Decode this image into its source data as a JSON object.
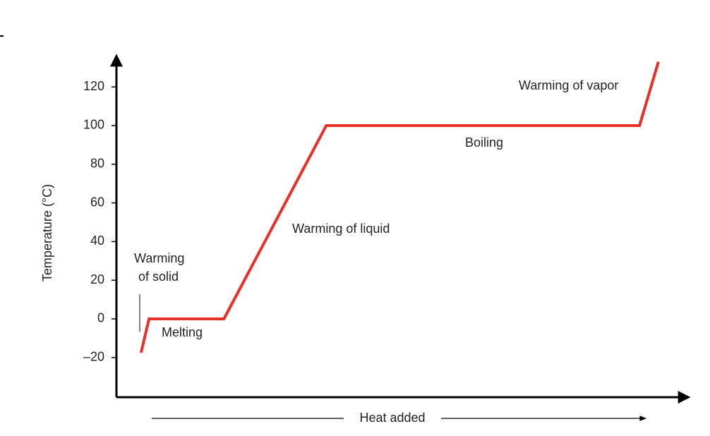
{
  "chart_data": {
    "type": "line",
    "y_label": "Temperature (°C)",
    "x_label": "Heat added",
    "x": [
      4.3,
      5.7,
      18.8,
      36.7,
      91.5,
      94.8
    ],
    "series": [
      {
        "color": "#e8302a",
        "values": [
          -17.5,
          0,
          0,
          100,
          100,
          133
        ]
      }
    ],
    "xlim": [
      0,
      100
    ],
    "ylim": [
      -40,
      137
    ],
    "yticks": [
      {
        "value": -20,
        "label": "–20"
      },
      0,
      20,
      40,
      60,
      80,
      100,
      120
    ],
    "annotations": {
      "warming_of_solid": [
        "Warming",
        "of solid"
      ],
      "melting": "Melting",
      "warming_of_liquid": "Warming of liquid",
      "boiling": "Boiling",
      "warming_of_vapor": "Warming of vapor"
    }
  }
}
